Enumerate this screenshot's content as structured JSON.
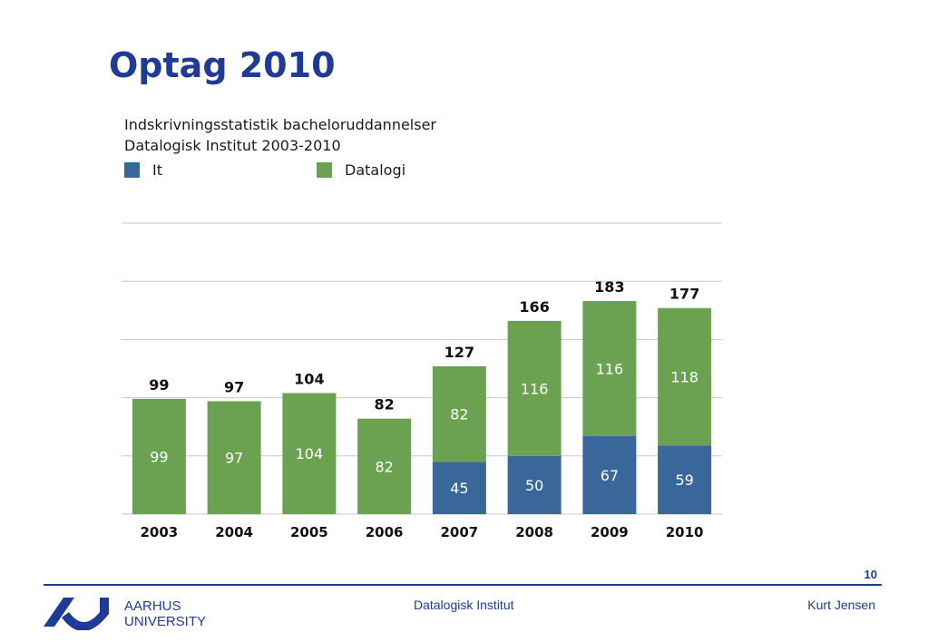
{
  "slide": {
    "title": "Optag 2010",
    "page_number": "10",
    "footer_center": "Datalogisk Institut",
    "footer_author": "Kurt Jensen",
    "logo_line1": "AARHUS",
    "logo_line2": "UNIVERSITY"
  },
  "colors": {
    "it": "#3a6799",
    "datalogi": "#6aa252",
    "title": "#1f3b96",
    "grid": "#c8c8c8"
  },
  "chart_data": {
    "type": "bar",
    "stacked": true,
    "title": "Indskrivningsstatistik bacheloruddannelser",
    "subtitle": "Datalogisk Institut 2003-2010",
    "categories": [
      "2003",
      "2004",
      "2005",
      "2006",
      "2007",
      "2008",
      "2009",
      "2010"
    ],
    "series": [
      {
        "name": "It",
        "values": [
          0,
          0,
          0,
          0,
          45,
          50,
          67,
          59
        ]
      },
      {
        "name": "Datalogi",
        "values": [
          99,
          97,
          104,
          82,
          82,
          116,
          116,
          118
        ]
      }
    ],
    "totals": [
      99,
      97,
      104,
      82,
      127,
      166,
      183,
      177
    ],
    "ylim": [
      0,
      250
    ],
    "grid": true,
    "legend_position": "top-left"
  }
}
